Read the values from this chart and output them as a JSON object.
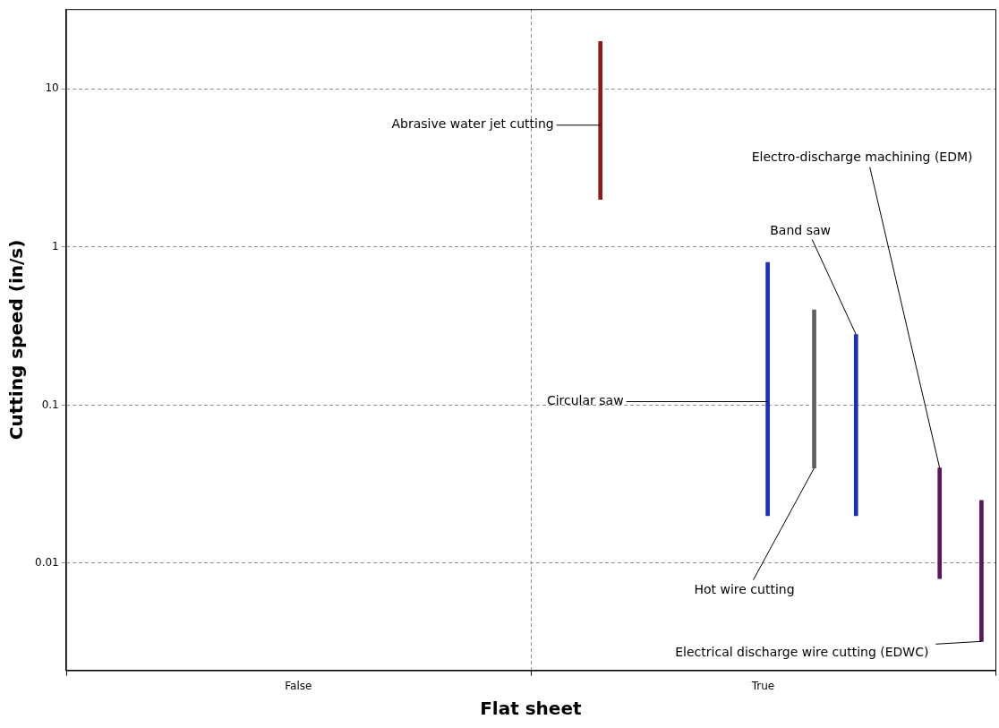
{
  "chart_data": {
    "type": "bar",
    "xlabel": "Flat sheet",
    "ylabel": "Cutting speed (in/s)",
    "categories": [
      "False",
      "True"
    ],
    "ylim": [
      0.0021,
      32
    ],
    "yticks": [
      0.01,
      0.1,
      1,
      10
    ],
    "log": "y",
    "grid": true,
    "legend": false,
    "series": [
      {
        "name": "Abrasive water jet cutting",
        "color": "#8b1a1a",
        "x": [
          "True"
        ],
        "base": [
          2
        ],
        "values": [
          18
        ]
      },
      {
        "name": "Circular saw",
        "color": "#1f2fb0",
        "x": [
          "True"
        ],
        "base": [
          0.02
        ],
        "values": [
          0.78
        ]
      },
      {
        "name": "Hot wire cutting",
        "color": "#606060",
        "x": [
          "True"
        ],
        "base": [
          0.04
        ],
        "values": [
          0.36
        ]
      },
      {
        "name": "Band saw",
        "color": "#1f2fb0",
        "x": [
          "True"
        ],
        "base": [
          0.02
        ],
        "values": [
          0.26
        ]
      },
      {
        "name": "Electro-discharge machining (EDM)",
        "color": "#5a1a5a",
        "x": [
          "True"
        ],
        "base": [
          0.008
        ],
        "values": [
          0.032
        ]
      },
      {
        "name": "Electrical discharge wire cutting (EDWC)",
        "color": "#5a1a5a",
        "x": [
          "True"
        ],
        "base": [
          0.0032
        ],
        "values": [
          0.0218
        ]
      }
    ]
  }
}
